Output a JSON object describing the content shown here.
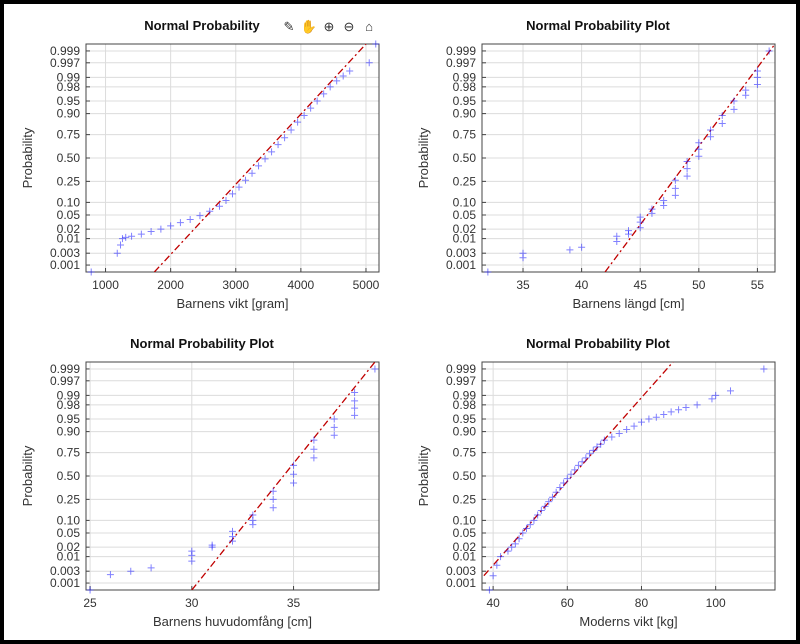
{
  "toolbar": {
    "icons": [
      "brush-icon",
      "hand-pan-icon",
      "zoom-in-icon",
      "zoom-out-icon",
      "home-icon"
    ]
  },
  "chart_data": [
    {
      "type": "scatter",
      "title": "Normal Probability",
      "xlabel": "Barnens vikt [gram]",
      "ylabel": "Probability",
      "xlim": [
        700,
        5200
      ],
      "xticks": [
        1000,
        2000,
        3000,
        4000,
        5000
      ],
      "yticks": [
        0.001,
        0.003,
        0.01,
        0.02,
        0.05,
        0.1,
        0.25,
        0.5,
        0.75,
        0.9,
        0.95,
        0.98,
        0.99,
        0.997,
        0.999
      ],
      "ytick_labels": [
        "0.001",
        "0.003",
        "0.01",
        "0.02",
        "0.05",
        "0.10",
        "0.25",
        "0.50",
        "0.75",
        "0.90",
        "0.95",
        "0.98",
        "0.99",
        "0.997",
        "0.999"
      ],
      "fit_line": {
        "p1": [
          1750,
          0.0005
        ],
        "p2": [
          5000,
          0.9995
        ]
      },
      "points": [
        [
          780,
          0.0005
        ],
        [
          1180,
          0.003
        ],
        [
          1230,
          0.006
        ],
        [
          1260,
          0.01
        ],
        [
          1310,
          0.011
        ],
        [
          1400,
          0.012
        ],
        [
          1550,
          0.014
        ],
        [
          1700,
          0.017
        ],
        [
          1850,
          0.02
        ],
        [
          2000,
          0.025
        ],
        [
          2150,
          0.031
        ],
        [
          2300,
          0.038
        ],
        [
          2450,
          0.048
        ],
        [
          2600,
          0.062
        ],
        [
          2750,
          0.082
        ],
        [
          2850,
          0.11
        ],
        [
          2950,
          0.15
        ],
        [
          3050,
          0.2
        ],
        [
          3150,
          0.26
        ],
        [
          3250,
          0.33
        ],
        [
          3350,
          0.41
        ],
        [
          3450,
          0.49
        ],
        [
          3550,
          0.57
        ],
        [
          3650,
          0.65
        ],
        [
          3750,
          0.72
        ],
        [
          3850,
          0.79
        ],
        [
          3950,
          0.85
        ],
        [
          4050,
          0.89
        ],
        [
          4150,
          0.925
        ],
        [
          4250,
          0.95
        ],
        [
          4350,
          0.968
        ],
        [
          4450,
          0.98
        ],
        [
          4550,
          0.987
        ],
        [
          4650,
          0.991
        ],
        [
          4750,
          0.994
        ],
        [
          5050,
          0.997
        ],
        [
          5150,
          0.9995
        ]
      ]
    },
    {
      "type": "scatter",
      "title": "Normal Probability Plot",
      "xlabel": "Barnens längd [cm]",
      "ylabel": "Probability",
      "xlim": [
        31.5,
        56.5
      ],
      "xticks": [
        35,
        40,
        45,
        50,
        55
      ],
      "yticks": [
        0.001,
        0.003,
        0.01,
        0.02,
        0.05,
        0.1,
        0.25,
        0.5,
        0.75,
        0.9,
        0.95,
        0.98,
        0.99,
        0.997,
        0.999
      ],
      "ytick_labels": [
        "0.001",
        "0.003",
        "0.01",
        "0.02",
        "0.05",
        "0.10",
        "0.25",
        "0.50",
        "0.75",
        "0.90",
        "0.95",
        "0.98",
        "0.99",
        "0.997",
        "0.999"
      ],
      "fit_line": {
        "p1": [
          42,
          0.0005
        ],
        "p2": [
          56.5,
          0.9995
        ]
      },
      "points": [
        [
          32,
          0.0005
        ],
        [
          35,
          0.002
        ],
        [
          35,
          0.003
        ],
        [
          39,
          0.004
        ],
        [
          40,
          0.005
        ],
        [
          43,
          0.008
        ],
        [
          43,
          0.012
        ],
        [
          44,
          0.014
        ],
        [
          44,
          0.018
        ],
        [
          45,
          0.022
        ],
        [
          45,
          0.032
        ],
        [
          45,
          0.044
        ],
        [
          46,
          0.055
        ],
        [
          46,
          0.07
        ],
        [
          47,
          0.085
        ],
        [
          47,
          0.11
        ],
        [
          48,
          0.14
        ],
        [
          48,
          0.19
        ],
        [
          48,
          0.26
        ],
        [
          49,
          0.3
        ],
        [
          49,
          0.38
        ],
        [
          49,
          0.46
        ],
        [
          50,
          0.52
        ],
        [
          50,
          0.6
        ],
        [
          50,
          0.67
        ],
        [
          51,
          0.73
        ],
        [
          51,
          0.79
        ],
        [
          52,
          0.84
        ],
        [
          52,
          0.89
        ],
        [
          53,
          0.92
        ],
        [
          53,
          0.95
        ],
        [
          54,
          0.965
        ],
        [
          54,
          0.975
        ],
        [
          55,
          0.983
        ],
        [
          55,
          0.99
        ],
        [
          55,
          0.994
        ],
        [
          56,
          0.999
        ]
      ]
    },
    {
      "type": "scatter",
      "title": "Normal Probability Plot",
      "xlabel": "Barnens huvudomfång [cm]",
      "ylabel": "Probability",
      "xlim": [
        24.8,
        39.2
      ],
      "xticks": [
        25,
        30,
        35
      ],
      "yticks": [
        0.001,
        0.003,
        0.01,
        0.02,
        0.05,
        0.1,
        0.25,
        0.5,
        0.75,
        0.9,
        0.95,
        0.98,
        0.99,
        0.997,
        0.999
      ],
      "ytick_labels": [
        "0.001",
        "0.003",
        "0.01",
        "0.02",
        "0.05",
        "0.10",
        "0.25",
        "0.50",
        "0.75",
        "0.90",
        "0.95",
        "0.98",
        "0.99",
        "0.997",
        "0.999"
      ],
      "fit_line": {
        "p1": [
          30,
          0.0005
        ],
        "p2": [
          39,
          0.9995
        ]
      },
      "points": [
        [
          25,
          0.0005
        ],
        [
          26,
          0.0022
        ],
        [
          27,
          0.003
        ],
        [
          28,
          0.004
        ],
        [
          30,
          0.007
        ],
        [
          30,
          0.011
        ],
        [
          30,
          0.015
        ],
        [
          31,
          0.02
        ],
        [
          31,
          0.023
        ],
        [
          32,
          0.03
        ],
        [
          32,
          0.04
        ],
        [
          32,
          0.055
        ],
        [
          33,
          0.08
        ],
        [
          33,
          0.1
        ],
        [
          33,
          0.13
        ],
        [
          34,
          0.18
        ],
        [
          34,
          0.25
        ],
        [
          34,
          0.33
        ],
        [
          35,
          0.42
        ],
        [
          35,
          0.52
        ],
        [
          35,
          0.62
        ],
        [
          36,
          0.7
        ],
        [
          36,
          0.78
        ],
        [
          36,
          0.85
        ],
        [
          37,
          0.88
        ],
        [
          37,
          0.92
        ],
        [
          37,
          0.95
        ],
        [
          38,
          0.96
        ],
        [
          38,
          0.975
        ],
        [
          38,
          0.985
        ],
        [
          38,
          0.992
        ],
        [
          39,
          0.999
        ]
      ]
    },
    {
      "type": "scatter",
      "title": "Normal Probability Plot",
      "xlabel": "Moderns vikt [kg]",
      "ylabel": "Probability",
      "xlim": [
        37,
        116
      ],
      "xticks": [
        40,
        60,
        80,
        100
      ],
      "yticks": [
        0.001,
        0.003,
        0.01,
        0.02,
        0.05,
        0.1,
        0.25,
        0.5,
        0.75,
        0.9,
        0.95,
        0.98,
        0.99,
        0.997,
        0.999
      ],
      "ytick_labels": [
        "0.001",
        "0.003",
        "0.01",
        "0.02",
        "0.05",
        "0.10",
        "0.25",
        "0.50",
        "0.75",
        "0.90",
        "0.95",
        "0.98",
        "0.99",
        "0.997",
        "0.999"
      ],
      "fit_line": {
        "p1": [
          37.5,
          0.002
        ],
        "p2": [
          88.5,
          0.9995
        ]
      },
      "points": [
        [
          39,
          0.0005
        ],
        [
          40,
          0.002
        ],
        [
          41,
          0.005
        ],
        [
          42,
          0.01
        ],
        [
          44,
          0.015
        ],
        [
          45,
          0.02
        ],
        [
          46,
          0.025
        ],
        [
          47,
          0.035
        ],
        [
          48,
          0.05
        ],
        [
          49,
          0.065
        ],
        [
          50,
          0.08
        ],
        [
          51,
          0.1
        ],
        [
          52,
          0.13
        ],
        [
          53,
          0.16
        ],
        [
          54,
          0.19
        ],
        [
          55,
          0.23
        ],
        [
          56,
          0.27
        ],
        [
          57,
          0.32
        ],
        [
          58,
          0.37
        ],
        [
          59,
          0.42
        ],
        [
          60,
          0.47
        ],
        [
          61,
          0.52
        ],
        [
          62,
          0.57
        ],
        [
          63,
          0.62
        ],
        [
          64,
          0.66
        ],
        [
          65,
          0.7
        ],
        [
          66,
          0.74
        ],
        [
          67,
          0.77
        ],
        [
          68,
          0.8
        ],
        [
          69,
          0.82
        ],
        [
          70,
          0.85
        ],
        [
          72,
          0.87
        ],
        [
          74,
          0.89
        ],
        [
          76,
          0.91
        ],
        [
          78,
          0.925
        ],
        [
          80,
          0.94
        ],
        [
          82,
          0.95
        ],
        [
          84,
          0.955
        ],
        [
          86,
          0.962
        ],
        [
          88,
          0.968
        ],
        [
          90,
          0.972
        ],
        [
          92,
          0.976
        ],
        [
          95,
          0.98
        ],
        [
          99,
          0.987
        ],
        [
          100,
          0.99
        ],
        [
          104,
          0.993
        ],
        [
          113,
          0.999
        ]
      ]
    }
  ]
}
